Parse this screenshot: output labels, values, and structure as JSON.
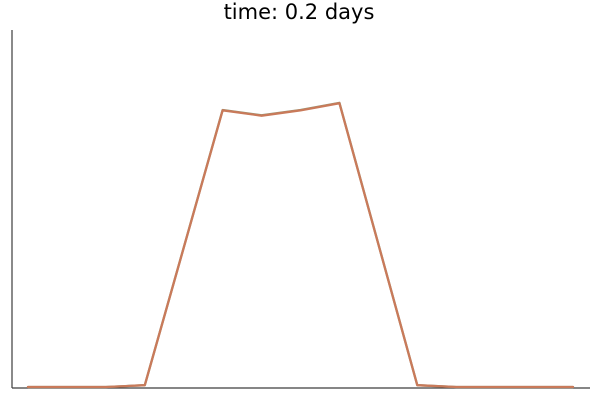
{
  "chart_data": {
    "type": "line",
    "title": "time: 0.2 days",
    "xlabel": "",
    "ylabel": "",
    "grid": false,
    "legend": "none",
    "xlim": [
      0,
      14
    ],
    "ylim": [
      0,
      1
    ],
    "series": [
      {
        "color": "#c97a5a",
        "x": [
          0,
          1,
          2,
          3,
          5,
          6,
          7,
          8,
          10,
          11,
          12,
          14
        ],
        "y": [
          0,
          0,
          0,
          0.005,
          0.775,
          0.76,
          0.775,
          0.795,
          0.005,
          0,
          0,
          0
        ]
      },
      {
        "color": "#8a9b7a",
        "x": [
          0,
          1,
          2,
          3,
          5,
          6,
          7,
          8,
          10,
          11,
          12,
          14
        ],
        "y": [
          0,
          0,
          0,
          0.005,
          0.776,
          0.761,
          0.776,
          0.796,
          0.005,
          0,
          0,
          0
        ]
      }
    ]
  }
}
